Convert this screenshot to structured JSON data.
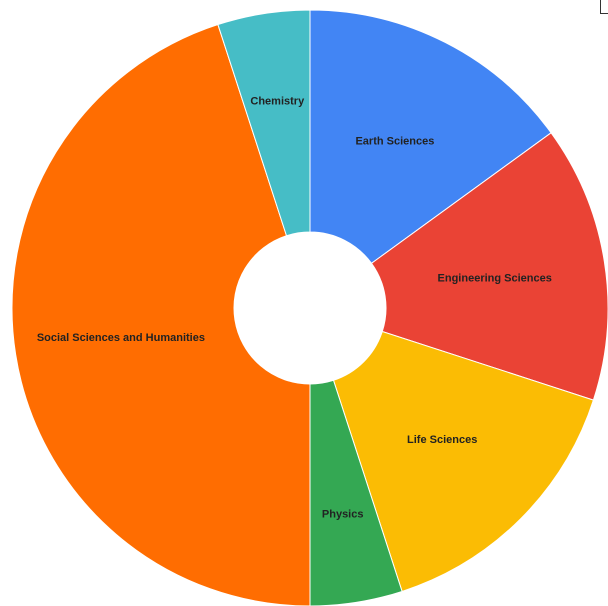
{
  "chart_data": {
    "type": "pie",
    "donut": true,
    "title": "",
    "slices": [
      {
        "label": "Earth Sciences",
        "value": 15,
        "color": "#4285f4"
      },
      {
        "label": "Engineering Sciences",
        "value": 15,
        "color": "#ea4335"
      },
      {
        "label": "Life Sciences",
        "value": 15,
        "color": "#fbbc04"
      },
      {
        "label": "Physics",
        "value": 5,
        "color": "#34a853"
      },
      {
        "label": "Social Sciences and Humanities",
        "value": 45,
        "color": "#ff6d01"
      },
      {
        "label": "Chemistry",
        "value": 5,
        "color": "#46bdc6"
      }
    ],
    "legend": "none"
  }
}
